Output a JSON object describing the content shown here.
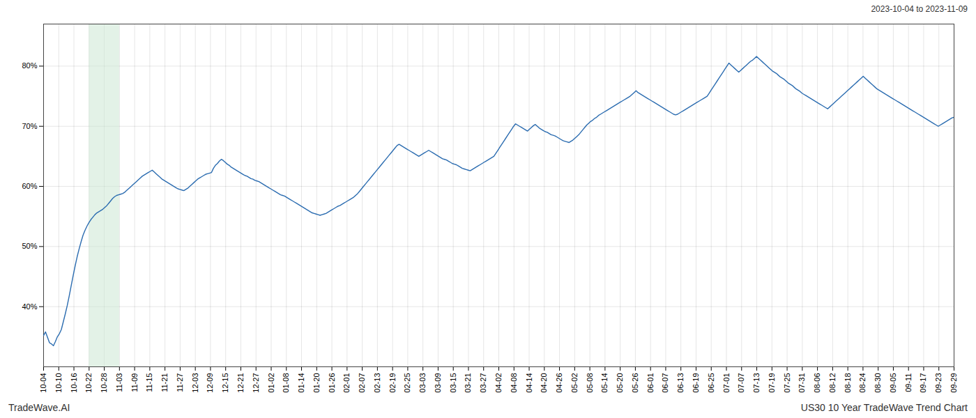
{
  "chart_data": {
    "type": "line",
    "title": "US30 10 Year TradeWave Trend Chart",
    "subtitle": "2023-10-04 to 2023-11-09",
    "annotations": [
      "TradeWave.AI"
    ],
    "color": "#2b6cb0",
    "grid": true,
    "xlim": [
      0,
      60
    ],
    "xticks": [
      {
        "value": 0,
        "label": "10-04"
      },
      {
        "value": 1,
        "label": "10-10"
      },
      {
        "value": 2,
        "label": "10-16"
      },
      {
        "value": 3,
        "label": "10-22"
      },
      {
        "value": 4,
        "label": "10-28"
      },
      {
        "value": 5,
        "label": "11-03"
      },
      {
        "value": 6,
        "label": "11-09"
      },
      {
        "value": 7,
        "label": "11-15"
      },
      {
        "value": 8,
        "label": "11-21"
      },
      {
        "value": 9,
        "label": "11-27"
      },
      {
        "value": 10,
        "label": "12-03"
      },
      {
        "value": 11,
        "label": "12-09"
      },
      {
        "value": 12,
        "label": "12-15"
      },
      {
        "value": 13,
        "label": "12-21"
      },
      {
        "value": 14,
        "label": "12-27"
      },
      {
        "value": 15,
        "label": "01-02"
      },
      {
        "value": 16,
        "label": "01-08"
      },
      {
        "value": 17,
        "label": "01-14"
      },
      {
        "value": 18,
        "label": "01-20"
      },
      {
        "value": 19,
        "label": "01-26"
      },
      {
        "value": 20,
        "label": "02-01"
      },
      {
        "value": 21,
        "label": "02-07"
      },
      {
        "value": 22,
        "label": "02-13"
      },
      {
        "value": 23,
        "label": "02-19"
      },
      {
        "value": 24,
        "label": "02-25"
      },
      {
        "value": 25,
        "label": "03-03"
      },
      {
        "value": 26,
        "label": "03-09"
      },
      {
        "value": 27,
        "label": "03-15"
      },
      {
        "value": 28,
        "label": "03-21"
      },
      {
        "value": 29,
        "label": "03-27"
      },
      {
        "value": 30,
        "label": "04-02"
      },
      {
        "value": 31,
        "label": "04-08"
      },
      {
        "value": 32,
        "label": "04-14"
      },
      {
        "value": 33,
        "label": "04-20"
      },
      {
        "value": 34,
        "label": "04-26"
      },
      {
        "value": 35,
        "label": "05-02"
      },
      {
        "value": 36,
        "label": "05-08"
      },
      {
        "value": 37,
        "label": "05-14"
      },
      {
        "value": 38,
        "label": "05-20"
      },
      {
        "value": 39,
        "label": "05-26"
      },
      {
        "value": 40,
        "label": "06-01"
      },
      {
        "value": 41,
        "label": "06-07"
      },
      {
        "value": 42,
        "label": "06-13"
      },
      {
        "value": 43,
        "label": "06-19"
      },
      {
        "value": 44,
        "label": "06-25"
      },
      {
        "value": 45,
        "label": "07-01"
      },
      {
        "value": 46,
        "label": "07-07"
      },
      {
        "value": 47,
        "label": "07-13"
      },
      {
        "value": 48,
        "label": "07-19"
      },
      {
        "value": 49,
        "label": "07-25"
      },
      {
        "value": 50,
        "label": "07-31"
      },
      {
        "value": 51,
        "label": "08-06"
      },
      {
        "value": 52,
        "label": "08-12"
      },
      {
        "value": 53,
        "label": "08-18"
      },
      {
        "value": 54,
        "label": "08-24"
      },
      {
        "value": 55,
        "label": "08-30"
      },
      {
        "value": 56,
        "label": "09-05"
      },
      {
        "value": 57,
        "label": "09-11"
      },
      {
        "value": 58,
        "label": "09-17"
      },
      {
        "value": 59,
        "label": "09-23"
      },
      {
        "value": 60,
        "label": "09-29"
      }
    ],
    "ylim": [
      30,
      87
    ],
    "yticks": [
      {
        "value": 40,
        "label": "40%"
      },
      {
        "value": 50,
        "label": "50%"
      },
      {
        "value": 60,
        "label": "60%"
      },
      {
        "value": 70,
        "label": "70%"
      },
      {
        "value": 80,
        "label": "80%"
      }
    ],
    "shade": {
      "start": "10-22",
      "end": "11-03",
      "color": "#cce8d4"
    },
    "values": [
      35.2,
      35.8,
      34.9,
      34.0,
      33.8,
      33.5,
      34.2,
      35.0,
      35.5,
      36.2,
      37.5,
      38.8,
      40.2,
      41.8,
      43.5,
      45.2,
      46.8,
      48.3,
      49.6,
      50.8,
      51.9,
      52.7,
      53.4,
      54.0,
      54.5,
      54.9,
      55.3,
      55.6,
      55.8,
      56.0,
      56.2,
      56.5,
      56.8,
      57.2,
      57.6,
      58.0,
      58.3,
      58.5,
      58.6,
      58.7,
      58.8,
      59.0,
      59.3,
      59.6,
      59.9,
      60.2,
      60.5,
      60.8,
      61.1,
      61.4,
      61.7,
      61.9,
      62.1,
      62.3,
      62.5,
      62.7,
      62.4,
      62.1,
      61.8,
      61.5,
      61.2,
      61.0,
      60.8,
      60.6,
      60.4,
      60.2,
      60.0,
      59.8,
      59.6,
      59.5,
      59.4,
      59.3,
      59.5,
      59.7,
      60.0,
      60.3,
      60.6,
      60.9,
      61.2,
      61.4,
      61.6,
      61.8,
      62.0,
      62.1,
      62.2,
      62.3,
      63.0,
      63.5,
      63.8,
      64.2,
      64.5,
      64.3,
      64.0,
      63.7,
      63.5,
      63.2,
      63.0,
      62.8,
      62.6,
      62.4,
      62.2,
      62.0,
      61.8,
      61.7,
      61.5,
      61.3,
      61.2,
      61.0,
      60.9,
      60.8,
      60.6,
      60.4,
      60.2,
      60.0,
      59.8,
      59.6,
      59.4,
      59.2,
      59.0,
      58.8,
      58.6,
      58.5,
      58.4,
      58.2,
      58.0,
      57.8,
      57.6,
      57.4,
      57.2,
      57.0,
      56.8,
      56.6,
      56.4,
      56.2,
      56.0,
      55.8,
      55.6,
      55.5,
      55.4,
      55.3,
      55.2,
      55.3,
      55.4,
      55.5,
      55.7,
      55.9,
      56.1,
      56.3,
      56.5,
      56.7,
      56.8,
      57.0,
      57.2,
      57.4,
      57.6,
      57.8,
      58.0,
      58.2,
      58.5,
      58.8,
      59.2,
      59.6,
      60.0,
      60.4,
      60.8,
      61.2,
      61.6,
      62.0,
      62.4,
      62.8,
      63.2,
      63.6,
      64.0,
      64.4,
      64.8,
      65.2,
      65.6,
      66.0,
      66.4,
      66.8,
      67.0,
      66.8,
      66.6,
      66.4,
      66.2,
      66.0,
      65.8,
      65.6,
      65.4,
      65.2,
      65.0,
      65.2,
      65.4,
      65.6,
      65.8,
      66.0,
      65.8,
      65.6,
      65.4,
      65.2,
      65.0,
      64.8,
      64.6,
      64.5,
      64.4,
      64.2,
      64.0,
      63.8,
      63.7,
      63.6,
      63.4,
      63.2,
      63.0,
      62.9,
      62.8,
      62.7,
      62.6,
      62.8,
      63.0,
      63.2,
      63.4,
      63.6,
      63.8,
      64.0,
      64.2,
      64.4,
      64.6,
      64.8,
      65.0,
      65.5,
      66.0,
      66.5,
      67.0,
      67.5,
      68.0,
      68.5,
      69.0,
      69.5,
      70.0,
      70.4,
      70.2,
      70.0,
      69.8,
      69.6,
      69.4,
      69.2,
      69.5,
      69.8,
      70.1,
      70.3,
      70.0,
      69.7,
      69.5,
      69.3,
      69.1,
      69.0,
      68.8,
      68.6,
      68.5,
      68.4,
      68.2,
      68.0,
      67.8,
      67.6,
      67.5,
      67.4,
      67.3,
      67.5,
      67.7,
      68.0,
      68.3,
      68.6,
      69.0,
      69.4,
      69.8,
      70.2,
      70.5,
      70.8,
      71.0,
      71.3,
      71.5,
      71.8,
      72.0,
      72.2,
      72.4,
      72.6,
      72.8,
      73.0,
      73.2,
      73.4,
      73.6,
      73.8,
      74.0,
      74.2,
      74.4,
      74.6,
      74.8,
      75.0,
      75.3,
      75.6,
      75.9,
      75.6,
      75.4,
      75.2,
      75.0,
      74.8,
      74.6,
      74.4,
      74.2,
      74.0,
      73.8,
      73.6,
      73.4,
      73.2,
      73.0,
      72.8,
      72.6,
      72.4,
      72.2,
      72.0,
      71.9,
      72.0,
      72.2,
      72.4,
      72.6,
      72.8,
      73.0,
      73.2,
      73.4,
      73.6,
      73.8,
      74.0,
      74.2,
      74.4,
      74.6,
      74.8,
      75.0,
      75.5,
      76.0,
      76.5,
      77.0,
      77.5,
      78.0,
      78.5,
      79.0,
      79.5,
      80.0,
      80.5,
      80.2,
      79.9,
      79.6,
      79.3,
      79.0,
      79.3,
      79.6,
      79.9,
      80.2,
      80.5,
      80.8,
      81.0,
      81.3,
      81.6,
      81.3,
      81.0,
      80.7,
      80.4,
      80.1,
      79.8,
      79.5,
      79.2,
      79.0,
      78.8,
      78.5,
      78.2,
      78.0,
      77.8,
      77.5,
      77.2,
      77.0,
      76.8,
      76.5,
      76.2,
      76.0,
      75.8,
      75.5,
      75.3,
      75.1,
      74.9,
      74.7,
      74.5,
      74.3,
      74.1,
      73.9,
      73.7,
      73.5,
      73.3,
      73.1,
      72.9,
      73.2,
      73.5,
      73.8,
      74.1,
      74.4,
      74.7,
      75.0,
      75.3,
      75.6,
      75.9,
      76.2,
      76.5,
      76.8,
      77.1,
      77.4,
      77.7,
      78.0,
      78.3,
      78.0,
      77.7,
      77.4,
      77.1,
      76.8,
      76.5,
      76.2,
      76.0,
      75.8,
      75.6,
      75.4,
      75.2,
      75.0,
      74.8,
      74.6,
      74.4,
      74.2,
      74.0,
      73.8,
      73.6,
      73.4,
      73.2,
      73.0,
      72.8,
      72.6,
      72.4,
      72.2,
      72.0,
      71.8,
      71.6,
      71.4,
      71.2,
      71.0,
      70.8,
      70.6,
      70.4,
      70.2,
      70.0,
      70.2,
      70.4,
      70.6,
      70.8,
      71.0,
      71.2,
      71.4,
      71.5
    ]
  }
}
